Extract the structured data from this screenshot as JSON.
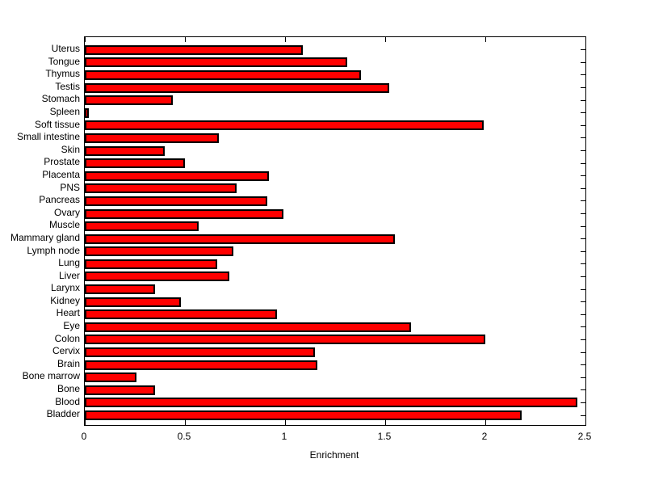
{
  "chart_data": {
    "type": "bar",
    "orientation": "horizontal",
    "title": "",
    "xlabel": "Enrichment",
    "ylabel": "",
    "xlim": [
      0,
      2.5
    ],
    "xticks": [
      0,
      0.5,
      1,
      1.5,
      2,
      2.5
    ],
    "xtick_labels": [
      "0",
      "0.5",
      "1",
      "1.5",
      "2",
      "2.5"
    ],
    "grid": false,
    "legend": false,
    "bar_color": "#ff0000",
    "bar_edge_color": "#000000",
    "background_color": "#ffffff",
    "categories": [
      "Uterus",
      "Tongue",
      "Thymus",
      "Testis",
      "Stomach",
      "Spleen",
      "Soft tissue",
      "Small intestine",
      "Skin",
      "Prostate",
      "Placenta",
      "PNS",
      "Pancreas",
      "Ovary",
      "Muscle",
      "Mammary gland",
      "Lymph node",
      "Lung",
      "Liver",
      "Larynx",
      "Kidney",
      "Heart",
      "Eye",
      "Colon",
      "Cervix",
      "Brain",
      "Bone marrow",
      "Bone",
      "Blood",
      "Bladder"
    ],
    "values": [
      1.09,
      1.31,
      1.38,
      1.52,
      0.44,
      0.02,
      1.99,
      0.67,
      0.4,
      0.5,
      0.92,
      0.76,
      0.91,
      0.99,
      0.57,
      1.55,
      0.74,
      0.66,
      0.72,
      0.35,
      0.48,
      0.96,
      1.63,
      2.0,
      1.15,
      1.16,
      0.26,
      0.35,
      2.46,
      2.18
    ]
  }
}
